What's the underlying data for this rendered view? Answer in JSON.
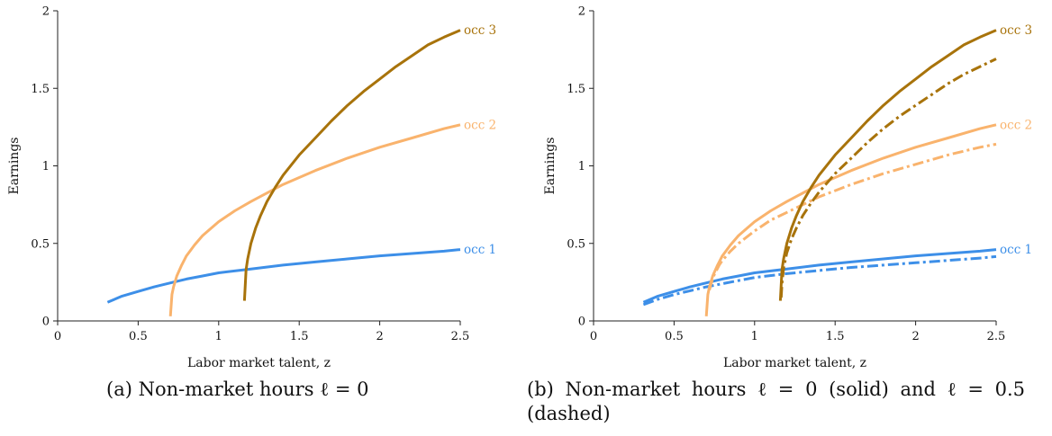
{
  "colors": {
    "occ1": "#3d8fe8",
    "occ2": "#f9b36d",
    "occ3": "#a8730b",
    "axis": "#222222"
  },
  "chart_data": [
    {
      "type": "line",
      "xlabel": "Labor market talent, z",
      "ylabel": "Earnings",
      "xlim": [
        0,
        2.5
      ],
      "ylim": [
        0,
        2
      ],
      "xticks": [
        "0",
        "0.5",
        "1",
        "1.5",
        "2",
        "2.5"
      ],
      "yticks": [
        "0",
        "0.5",
        "1",
        "1.5",
        "2"
      ],
      "series": [
        {
          "name": "occ 1",
          "color_key": "occ1",
          "style": "solid",
          "x": [
            0.31,
            0.4,
            0.5,
            0.6,
            0.7,
            0.8,
            0.9,
            1.0,
            1.2,
            1.4,
            1.6,
            1.8,
            2.0,
            2.2,
            2.4,
            2.5
          ],
          "y": [
            0.12,
            0.16,
            0.19,
            0.22,
            0.245,
            0.27,
            0.29,
            0.31,
            0.335,
            0.36,
            0.38,
            0.4,
            0.42,
            0.435,
            0.45,
            0.46
          ]
        },
        {
          "name": "occ 2",
          "color_key": "occ2",
          "style": "solid",
          "x": [
            0.7,
            0.71,
            0.72,
            0.74,
            0.77,
            0.8,
            0.85,
            0.9,
            1.0,
            1.1,
            1.2,
            1.4,
            1.6,
            1.8,
            2.0,
            2.2,
            2.4,
            2.5
          ],
          "y": [
            0.03,
            0.17,
            0.22,
            0.29,
            0.36,
            0.42,
            0.49,
            0.55,
            0.64,
            0.71,
            0.77,
            0.88,
            0.97,
            1.05,
            1.12,
            1.18,
            1.24,
            1.265
          ]
        },
        {
          "name": "occ 3",
          "color_key": "occ3",
          "style": "solid",
          "x": [
            1.16,
            1.17,
            1.18,
            1.2,
            1.23,
            1.26,
            1.3,
            1.35,
            1.4,
            1.5,
            1.6,
            1.7,
            1.8,
            1.9,
            2.0,
            2.1,
            2.2,
            2.3,
            2.4,
            2.5
          ],
          "y": [
            0.13,
            0.33,
            0.4,
            0.5,
            0.6,
            0.68,
            0.77,
            0.86,
            0.94,
            1.07,
            1.18,
            1.29,
            1.39,
            1.48,
            1.56,
            1.64,
            1.71,
            1.78,
            1.83,
            1.875
          ]
        }
      ]
    },
    {
      "type": "line",
      "xlabel": "Labor market talent, z",
      "ylabel": "Earnings",
      "xlim": [
        0,
        2.5
      ],
      "ylim": [
        0,
        2
      ],
      "xticks": [
        "0",
        "0.5",
        "1",
        "1.5",
        "2",
        "2.5"
      ],
      "yticks": [
        "0",
        "0.5",
        "1",
        "1.5",
        "2"
      ],
      "series": [
        {
          "name": "occ 1",
          "color_key": "occ1",
          "style": "solid",
          "x": [
            0.31,
            0.4,
            0.5,
            0.6,
            0.7,
            0.8,
            0.9,
            1.0,
            1.2,
            1.4,
            1.6,
            1.8,
            2.0,
            2.2,
            2.4,
            2.5
          ],
          "y": [
            0.12,
            0.16,
            0.19,
            0.22,
            0.245,
            0.27,
            0.29,
            0.31,
            0.335,
            0.36,
            0.38,
            0.4,
            0.42,
            0.435,
            0.45,
            0.46
          ]
        },
        {
          "name": "",
          "color_key": "occ1",
          "style": "dashdot",
          "x": [
            0.31,
            0.4,
            0.5,
            0.6,
            0.7,
            0.8,
            0.9,
            1.0,
            1.2,
            1.4,
            1.6,
            1.8,
            2.0,
            2.2,
            2.4,
            2.5
          ],
          "y": [
            0.105,
            0.14,
            0.17,
            0.195,
            0.22,
            0.24,
            0.26,
            0.28,
            0.305,
            0.325,
            0.345,
            0.36,
            0.375,
            0.39,
            0.405,
            0.415
          ]
        },
        {
          "name": "occ 2",
          "color_key": "occ2",
          "style": "solid",
          "x": [
            0.7,
            0.71,
            0.72,
            0.74,
            0.77,
            0.8,
            0.85,
            0.9,
            1.0,
            1.1,
            1.2,
            1.4,
            1.6,
            1.8,
            2.0,
            2.2,
            2.4,
            2.5
          ],
          "y": [
            0.03,
            0.17,
            0.22,
            0.29,
            0.36,
            0.42,
            0.49,
            0.55,
            0.64,
            0.71,
            0.77,
            0.88,
            0.97,
            1.05,
            1.12,
            1.18,
            1.24,
            1.265
          ]
        },
        {
          "name": "",
          "color_key": "occ2",
          "style": "dashdot",
          "x": [
            0.72,
            0.73,
            0.75,
            0.78,
            0.8,
            0.85,
            0.9,
            1.0,
            1.1,
            1.2,
            1.4,
            1.6,
            1.8,
            2.0,
            2.2,
            2.4,
            2.5
          ],
          "y": [
            0.2,
            0.24,
            0.3,
            0.36,
            0.39,
            0.45,
            0.5,
            0.58,
            0.65,
            0.7,
            0.8,
            0.88,
            0.95,
            1.01,
            1.07,
            1.12,
            1.14
          ]
        },
        {
          "name": "occ 3",
          "color_key": "occ3",
          "style": "solid",
          "x": [
            1.16,
            1.17,
            1.18,
            1.2,
            1.23,
            1.26,
            1.3,
            1.35,
            1.4,
            1.5,
            1.6,
            1.7,
            1.8,
            1.9,
            2.0,
            2.1,
            2.2,
            2.3,
            2.4,
            2.5
          ],
          "y": [
            0.13,
            0.33,
            0.4,
            0.5,
            0.6,
            0.68,
            0.77,
            0.86,
            0.94,
            1.07,
            1.18,
            1.29,
            1.39,
            1.48,
            1.56,
            1.64,
            1.71,
            1.78,
            1.83,
            1.875
          ]
        },
        {
          "name": "",
          "color_key": "occ3",
          "style": "dashdot",
          "x": [
            1.165,
            1.17,
            1.18,
            1.2,
            1.23,
            1.26,
            1.3,
            1.35,
            1.4,
            1.5,
            1.6,
            1.7,
            1.8,
            1.9,
            2.0,
            2.1,
            2.2,
            2.3,
            2.4,
            2.5
          ],
          "y": [
            0.15,
            0.24,
            0.34,
            0.44,
            0.53,
            0.6,
            0.68,
            0.76,
            0.83,
            0.95,
            1.05,
            1.15,
            1.24,
            1.32,
            1.39,
            1.46,
            1.53,
            1.59,
            1.64,
            1.69
          ]
        }
      ]
    }
  ],
  "captions": {
    "a": "(a) Non-market hours ℓ = 0",
    "b_line1": "(b) Non-market hours ℓ = 0 (solid) and ℓ = 0.5",
    "b_line2": "(dashed)"
  }
}
